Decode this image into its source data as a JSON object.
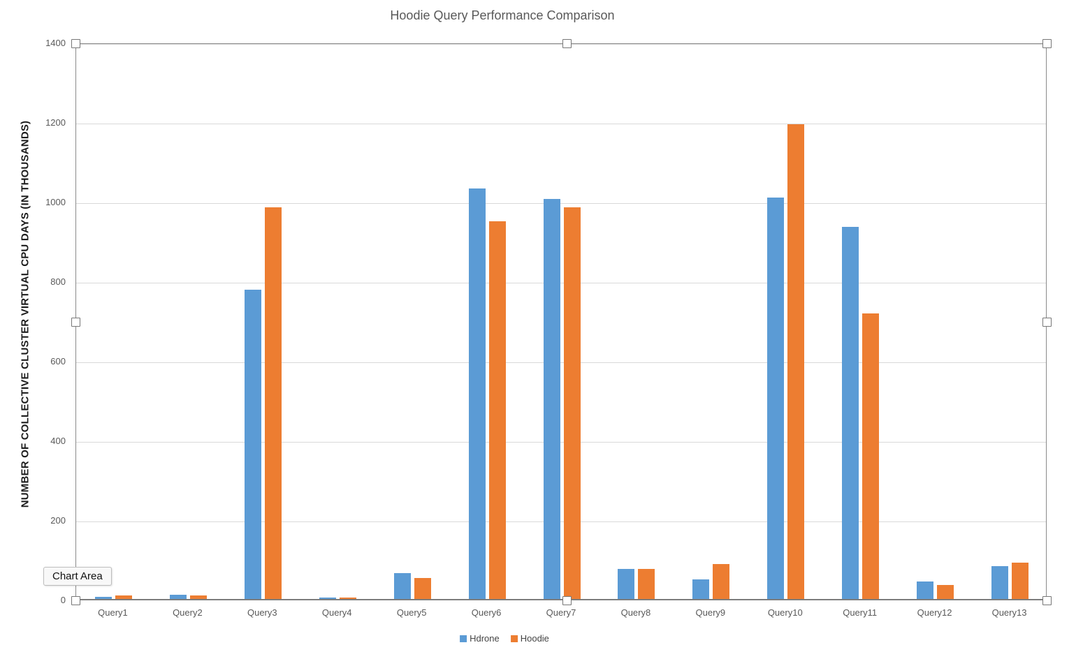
{
  "chart_data": {
    "type": "bar",
    "title": "Hoodie Query Performance Comparison",
    "xlabel": "",
    "ylabel": "NUMBER OF COLLECTIVE CLUSTER VIRTUAL CPU DAYS (IN THOUSANDS)",
    "categories": [
      "Query1",
      "Query2",
      "Query3",
      "Query4",
      "Query5",
      "Query6",
      "Query7",
      "Query8",
      "Query9",
      "Query10",
      "Query11",
      "Query12",
      "Query13"
    ],
    "series": [
      {
        "name": "Hdrone",
        "color": "#5B9BD5",
        "values": [
          5,
          10,
          777,
          4,
          65,
          1031,
          1005,
          75,
          50,
          1008,
          935,
          44,
          82
        ]
      },
      {
        "name": "Hoodie",
        "color": "#ED7D31",
        "values": [
          8,
          8,
          984,
          4,
          53,
          950,
          984,
          75,
          88,
          1193,
          718,
          35,
          91
        ]
      }
    ],
    "ylim": [
      0,
      1400
    ],
    "yticks": [
      0,
      200,
      400,
      600,
      800,
      1000,
      1200,
      1400
    ],
    "grid": true,
    "legend_position": "bottom"
  },
  "ui": {
    "tooltip": "Chart Area"
  }
}
